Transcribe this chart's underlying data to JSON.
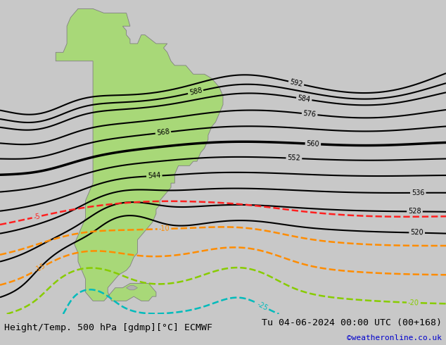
{
  "title_left": "Height/Temp. 500 hPa [gdmp][°C] ECMWF",
  "title_right": "Tu 04-06-2024 00:00 UTC (00+168)",
  "watermark": "©weatheronline.co.uk",
  "bg_color": "#c8c8c8",
  "land_color": "#a8d878",
  "coast_color": "#808080",
  "bottom_bar_color": "#e0e0e0",
  "text_color": "#000000",
  "watermark_color": "#0000cc",
  "z500_color": "#000000",
  "temp_colors": {
    "-5": "#ff2020",
    "-10": "#ff8c00",
    "-15": "#ff8c00",
    "-20": "#88cc00",
    "-25": "#00bbbb",
    "-30": "#00aaaa"
  },
  "xlim": [
    -95,
    25
  ],
  "ylim": [
    -58,
    14
  ],
  "title_fontsize": 9.5,
  "watermark_fontsize": 8,
  "label_fontsize": 7
}
